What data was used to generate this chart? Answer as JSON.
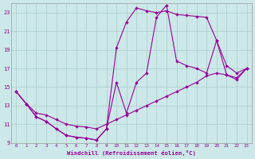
{
  "xlabel": "Windchill (Refroidissement éolien,°C)",
  "bg_color": "#cce8e8",
  "line_color": "#990099",
  "grid_color": "#aacccc",
  "xlim": [
    -0.5,
    23.5
  ],
  "ylim": [
    9,
    24
  ],
  "xticks": [
    0,
    1,
    2,
    3,
    4,
    5,
    6,
    7,
    8,
    9,
    10,
    11,
    12,
    13,
    14,
    15,
    16,
    17,
    18,
    19,
    20,
    21,
    22,
    23
  ],
  "yticks": [
    9,
    11,
    13,
    15,
    17,
    19,
    21,
    23
  ],
  "line1_x": [
    0,
    1,
    2,
    3,
    4,
    5,
    6,
    7,
    8,
    9,
    10,
    11,
    12,
    13,
    14,
    15,
    16,
    17,
    18,
    19,
    20,
    21,
    22,
    23
  ],
  "line1_y": [
    14.5,
    13.2,
    12.2,
    12.0,
    11.5,
    11.0,
    10.8,
    10.7,
    10.5,
    11.0,
    11.5,
    12.0,
    12.5,
    13.0,
    13.5,
    14.0,
    14.5,
    15.0,
    15.5,
    16.2,
    16.5,
    16.3,
    16.0,
    17.0
  ],
  "line2_x": [
    0,
    1,
    2,
    3,
    4,
    5,
    6,
    7,
    8,
    9,
    10,
    11,
    12,
    13,
    14,
    15,
    16,
    17,
    18,
    19,
    20,
    21,
    22,
    23
  ],
  "line2_y": [
    14.5,
    13.2,
    11.8,
    11.3,
    10.5,
    9.8,
    9.6,
    9.5,
    9.3,
    10.5,
    19.2,
    22.0,
    23.5,
    23.2,
    23.0,
    23.2,
    22.8,
    22.7,
    22.6,
    22.5,
    20.0,
    17.3,
    16.5,
    17.0
  ],
  "line3_x": [
    0,
    1,
    2,
    3,
    4,
    5,
    6,
    7,
    8,
    9,
    10,
    11,
    12,
    13,
    14,
    15,
    16,
    17,
    18,
    19,
    20,
    21,
    22,
    23
  ],
  "line3_y": [
    14.5,
    13.2,
    11.8,
    11.3,
    10.5,
    9.8,
    9.6,
    9.5,
    9.3,
    10.5,
    15.5,
    12.2,
    15.5,
    16.5,
    22.5,
    23.8,
    17.8,
    17.3,
    17.0,
    16.5,
    20.0,
    16.3,
    15.8,
    17.0
  ]
}
